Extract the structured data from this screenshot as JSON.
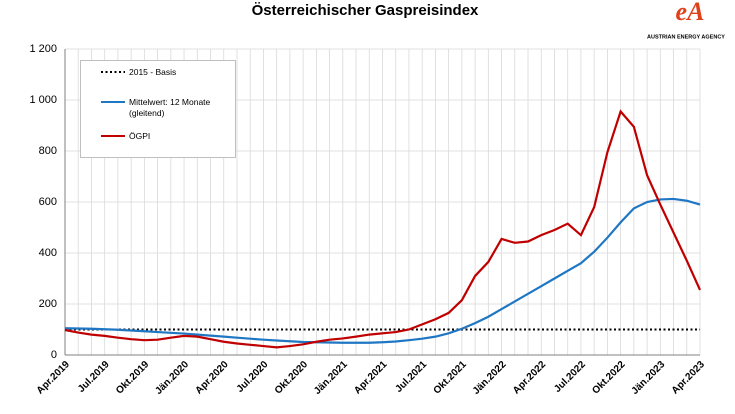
{
  "chart_data": {
    "type": "line",
    "title": "Österreichischer  Gaspreisindex",
    "logo": {
      "mark": "eA",
      "text": "AUSTRIAN ENERGY AGENCY"
    },
    "categories": [
      "Apr.2019",
      null,
      null,
      "Jul.2019",
      null,
      null,
      "Okt.2019",
      null,
      null,
      "Jän.2020",
      null,
      null,
      "Apr.2020",
      null,
      null,
      "Jul.2020",
      null,
      null,
      "Okt.2020",
      null,
      null,
      "Jän.2021",
      null,
      null,
      "Apr.2021",
      null,
      null,
      "Jul.2021",
      null,
      null,
      "Okt.2021",
      null,
      null,
      "Jän.2022",
      null,
      null,
      "Apr.2022",
      null,
      null,
      "Jul.2022",
      null,
      null,
      "Okt.2022",
      null,
      null,
      "Jän.2023",
      null,
      null,
      "Apr.2023"
    ],
    "series": [
      {
        "name": "2015 - Basis",
        "color": "#000000",
        "style": "dotted",
        "values": [
          100,
          100,
          100,
          100,
          100,
          100,
          100,
          100,
          100,
          100,
          100,
          100,
          100,
          100,
          100,
          100,
          100,
          100,
          100,
          100,
          100,
          100,
          100,
          100,
          100,
          100,
          100,
          100,
          100,
          100,
          100,
          100,
          100,
          100,
          100,
          100,
          100,
          100,
          100,
          100,
          100,
          100,
          100,
          100,
          100,
          100,
          100,
          100,
          100
        ]
      },
      {
        "name": "Mittelwert: 12 Monate (gleitend)",
        "color": "#1f77c4",
        "style": "solid",
        "values": [
          105,
          104,
          103,
          101,
          99,
          96,
          93,
          90,
          87,
          84,
          80,
          76,
          72,
          68,
          64,
          60,
          57,
          54,
          51,
          50,
          49,
          48,
          48,
          48,
          50,
          53,
          58,
          64,
          72,
          85,
          103,
          125,
          150,
          180,
          210,
          240,
          270,
          300,
          330,
          360,
          405,
          460,
          520,
          575,
          600,
          610,
          612,
          605,
          590
        ]
      },
      {
        "name": "ÖGPI",
        "color": "#c00000",
        "style": "solid",
        "values": [
          98,
          88,
          80,
          75,
          68,
          62,
          58,
          60,
          68,
          75,
          72,
          62,
          52,
          45,
          40,
          35,
          30,
          35,
          42,
          52,
          60,
          65,
          72,
          80,
          85,
          90,
          100,
          120,
          140,
          165,
          215,
          310,
          365,
          455,
          440,
          445,
          470,
          490,
          515,
          470,
          580,
          795,
          955,
          895,
          705,
          590,
          480,
          370,
          255
        ]
      }
    ],
    "ylim": [
      0,
      1200
    ],
    "yticks": [
      0,
      200,
      400,
      600,
      800,
      {
        "value": 1000,
        "label": "1 000"
      },
      {
        "value": 1200,
        "label": "1 200"
      }
    ],
    "grid": true
  }
}
